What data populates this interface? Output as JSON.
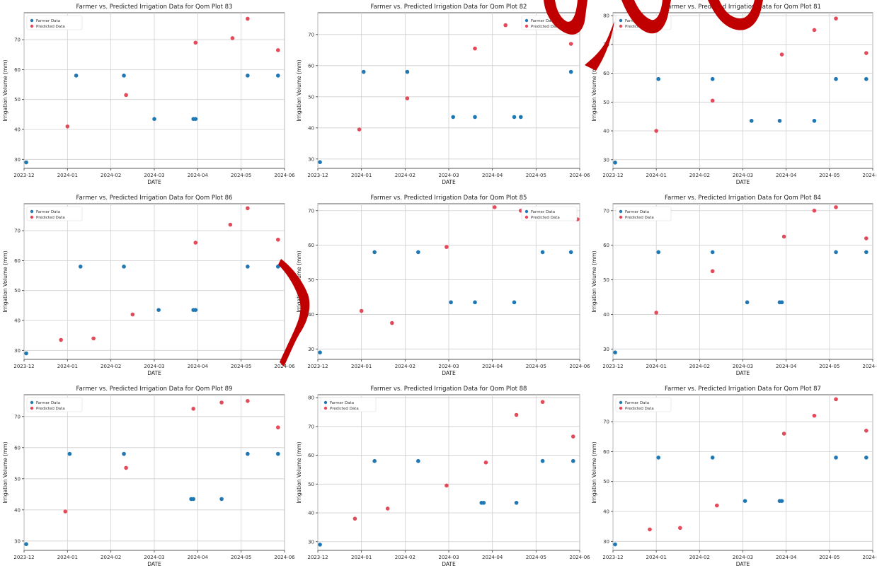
{
  "figure": {
    "colors": {
      "farmer": "#1f77b4",
      "predicted": "#e34a5a",
      "grid": "#cfcfcf",
      "axis": "#333333",
      "decoration": "#c00000"
    }
  },
  "chart_data": [
    {
      "type": "scatter",
      "title": "Farmer vs. Predicted Irrigation Data for Qom Plot 83",
      "xlabel": "DATE",
      "ylabel": "Irrigation Volume (mm)",
      "xticks": [
        "2023-12",
        "2024-01",
        "2024-02",
        "2024-03",
        "2024-04",
        "2024-05",
        "2024-06"
      ],
      "xlim": [
        0,
        6
      ],
      "ylim": [
        27,
        79
      ],
      "yticks": [
        30,
        40,
        50,
        60,
        70
      ],
      "legend": {
        "position": "top-left",
        "entries": [
          "Farmer Data",
          "Predicted Data"
        ]
      },
      "grid": true,
      "series": [
        {
          "name": "Farmer Data",
          "color": "#1f77b4",
          "points": [
            [
              0.05,
              29
            ],
            [
              1.2,
              58
            ],
            [
              2.3,
              58
            ],
            [
              3.0,
              43.5
            ],
            [
              3.9,
              43.5
            ],
            [
              3.95,
              43.5
            ],
            [
              5.15,
              58
            ],
            [
              5.85,
              58
            ]
          ]
        },
        {
          "name": "Predicted Data",
          "color": "#e34a5a",
          "points": [
            [
              1.0,
              41
            ],
            [
              2.35,
              51.5
            ],
            [
              3.95,
              69
            ],
            [
              4.8,
              70.5
            ],
            [
              5.15,
              77
            ],
            [
              5.85,
              66.5
            ]
          ]
        }
      ]
    },
    {
      "type": "scatter",
      "title": "Farmer vs. Predicted Irrigation Data for Qom Plot 82",
      "xlabel": "DATE",
      "ylabel": "Irrigation Volume (mm)",
      "xticks": [
        "2023-12",
        "2024-01",
        "2024-02",
        "2024-03",
        "2024-04",
        "2024-05",
        "2024-06"
      ],
      "xlim": [
        0,
        6
      ],
      "ylim": [
        27,
        77
      ],
      "yticks": [
        30,
        40,
        50,
        60,
        70
      ],
      "legend": {
        "position": "top-right",
        "entries": [
          "Farmer Data",
          "Predicted Data"
        ]
      },
      "grid": true,
      "series": [
        {
          "name": "Farmer Data",
          "color": "#1f77b4",
          "points": [
            [
              0.05,
              29
            ],
            [
              1.05,
              58
            ],
            [
              2.05,
              58
            ],
            [
              3.1,
              43.5
            ],
            [
              3.6,
              43.5
            ],
            [
              4.5,
              43.5
            ],
            [
              4.65,
              43.5
            ],
            [
              5.8,
              58
            ]
          ]
        },
        {
          "name": "Predicted Data",
          "color": "#e34a5a",
          "points": [
            [
              0.95,
              39.5
            ],
            [
              2.05,
              49.5
            ],
            [
              3.6,
              65.5
            ],
            [
              4.3,
              73
            ],
            [
              4.95,
              75
            ],
            [
              5.8,
              67
            ]
          ]
        }
      ]
    },
    {
      "type": "scatter",
      "title": "Farmer vs. Predicted Irrigation Data for Qom Plot 81",
      "xlabel": "DATE",
      "ylabel": "Irrigation Volume (mm)",
      "xticks": [
        "2023-12",
        "2024-01",
        "2024-02",
        "2024-03",
        "2024-04",
        "2024-05",
        "2024-06"
      ],
      "xlim": [
        0,
        6
      ],
      "ylim": [
        27,
        81
      ],
      "yticks": [
        30,
        40,
        50,
        60,
        70,
        80
      ],
      "legend": {
        "position": "top-left",
        "entries": [
          "Farmer Data",
          "Predicted Data"
        ]
      },
      "grid": true,
      "series": [
        {
          "name": "Farmer Data",
          "color": "#1f77b4",
          "points": [
            [
              0.05,
              29
            ],
            [
              1.05,
              58
            ],
            [
              2.3,
              58
            ],
            [
              3.2,
              43.5
            ],
            [
              3.85,
              43.5
            ],
            [
              4.65,
              43.5
            ],
            [
              5.15,
              58
            ],
            [
              5.85,
              58
            ]
          ]
        },
        {
          "name": "Predicted Data",
          "color": "#e34a5a",
          "points": [
            [
              1.0,
              40
            ],
            [
              2.3,
              50.5
            ],
            [
              3.9,
              66.5
            ],
            [
              4.65,
              75
            ],
            [
              5.15,
              79
            ],
            [
              5.85,
              67
            ]
          ]
        }
      ]
    },
    {
      "type": "scatter",
      "title": "Farmer vs. Predicted Irrigation Data for Qom Plot 86",
      "xlabel": "DATE",
      "ylabel": "Irrigation Volume (mm)",
      "xticks": [
        "2023-12",
        "2024-01",
        "2024-02",
        "2024-03",
        "2024-04",
        "2024-05",
        "2024-06"
      ],
      "xlim": [
        0,
        6
      ],
      "ylim": [
        27,
        79
      ],
      "yticks": [
        30,
        40,
        50,
        60,
        70
      ],
      "legend": {
        "position": "top-left",
        "entries": [
          "Farmer Data",
          "Predicted Data"
        ]
      },
      "grid": true,
      "series": [
        {
          "name": "Farmer Data",
          "color": "#1f77b4",
          "points": [
            [
              0.05,
              29
            ],
            [
              1.3,
              58
            ],
            [
              2.3,
              58
            ],
            [
              3.1,
              43.5
            ],
            [
              3.9,
              43.5
            ],
            [
              3.95,
              43.5
            ],
            [
              5.15,
              58
            ],
            [
              5.85,
              58
            ]
          ]
        },
        {
          "name": "Predicted Data",
          "color": "#e34a5a",
          "points": [
            [
              0.85,
              33.5
            ],
            [
              1.6,
              34
            ],
            [
              2.5,
              42
            ],
            [
              3.95,
              66
            ],
            [
              4.75,
              72
            ],
            [
              5.15,
              77.5
            ],
            [
              5.85,
              67
            ]
          ]
        }
      ]
    },
    {
      "type": "scatter",
      "title": "Farmer vs. Predicted Irrigation Data for Qom Plot 85",
      "xlabel": "DATE",
      "ylabel": "Irrigation Volume (mm)",
      "xticks": [
        "2023-12",
        "2024-01",
        "2024-02",
        "2024-03",
        "2024-04",
        "2024-05",
        "2024-06"
      ],
      "xlim": [
        0,
        6
      ],
      "ylim": [
        27,
        72
      ],
      "yticks": [
        30,
        40,
        50,
        60,
        70
      ],
      "legend": {
        "position": "top-right",
        "entries": [
          "Farmer Data",
          "Predicted Data"
        ]
      },
      "grid": true,
      "series": [
        {
          "name": "Farmer Data",
          "color": "#1f77b4",
          "points": [
            [
              0.05,
              29
            ],
            [
              1.3,
              58
            ],
            [
              2.3,
              58
            ],
            [
              3.05,
              43.5
            ],
            [
              3.6,
              43.5
            ],
            [
              4.5,
              43.5
            ],
            [
              5.15,
              58
            ],
            [
              5.8,
              58
            ]
          ]
        },
        {
          "name": "Predicted Data",
          "color": "#e34a5a",
          "points": [
            [
              1.0,
              41
            ],
            [
              1.7,
              37.5
            ],
            [
              2.95,
              59.5
            ],
            [
              4.05,
              71
            ],
            [
              4.65,
              70
            ],
            [
              5.2,
              68
            ],
            [
              5.95,
              67.5
            ]
          ]
        }
      ]
    },
    {
      "type": "scatter",
      "title": "Farmer vs. Predicted Irrigation Data for Qom Plot 84",
      "xlabel": "DATE",
      "ylabel": "Irrigation Volume (mm)",
      "xticks": [
        "2023-12",
        "2024-01",
        "2024-02",
        "2024-03",
        "2024-04",
        "2024-05",
        "2024-06"
      ],
      "xlim": [
        0,
        6
      ],
      "ylim": [
        27,
        72
      ],
      "yticks": [
        30,
        40,
        50,
        60,
        70
      ],
      "legend": {
        "position": "top-left",
        "entries": [
          "Farmer Data",
          "Predicted Data"
        ]
      },
      "grid": true,
      "series": [
        {
          "name": "Farmer Data",
          "color": "#1f77b4",
          "points": [
            [
              0.05,
              29
            ],
            [
              1.05,
              58
            ],
            [
              2.3,
              58
            ],
            [
              3.1,
              43.5
            ],
            [
              3.85,
              43.5
            ],
            [
              3.9,
              43.5
            ],
            [
              5.15,
              58
            ],
            [
              5.85,
              58
            ]
          ]
        },
        {
          "name": "Predicted Data",
          "color": "#e34a5a",
          "points": [
            [
              1.0,
              40.5
            ],
            [
              2.3,
              52.5
            ],
            [
              3.95,
              62.5
            ],
            [
              4.65,
              70
            ],
            [
              5.15,
              71
            ],
            [
              5.85,
              62
            ]
          ]
        }
      ]
    },
    {
      "type": "scatter",
      "title": "Farmer vs. Predicted Irrigation Data for Qom Plot 89",
      "xlabel": "DATE",
      "ylabel": "Irrigation Volume (mm)",
      "xticks": [
        "2023-12",
        "2024-01",
        "2024-02",
        "2024-03",
        "2024-04",
        "2024-05",
        "2024-06"
      ],
      "xlim": [
        0,
        6
      ],
      "ylim": [
        27,
        77
      ],
      "yticks": [
        30,
        40,
        50,
        60,
        70
      ],
      "legend": {
        "position": "top-left",
        "entries": [
          "Farmer Data",
          "Predicted Data"
        ]
      },
      "grid": true,
      "series": [
        {
          "name": "Farmer Data",
          "color": "#1f77b4",
          "points": [
            [
              0.05,
              29
            ],
            [
              1.05,
              58
            ],
            [
              2.3,
              58
            ],
            [
              3.85,
              43.5
            ],
            [
              3.9,
              43.5
            ],
            [
              4.55,
              43.5
            ],
            [
              5.15,
              58
            ],
            [
              5.85,
              58
            ]
          ]
        },
        {
          "name": "Predicted Data",
          "color": "#e34a5a",
          "points": [
            [
              0.95,
              39.5
            ],
            [
              2.35,
              53.5
            ],
            [
              3.9,
              72.5
            ],
            [
              4.55,
              74.5
            ],
            [
              5.15,
              75
            ],
            [
              5.85,
              66.5
            ]
          ]
        }
      ]
    },
    {
      "type": "scatter",
      "title": "Farmer vs. Predicted Irrigation Data for Qom Plot 88",
      "xlabel": "DATE",
      "ylabel": "Irrigation Volume (mm)",
      "xticks": [
        "2023-12",
        "2024-01",
        "2024-02",
        "2024-03",
        "2024-04",
        "2024-05",
        "2024-06"
      ],
      "xlim": [
        0,
        6
      ],
      "ylim": [
        27,
        81
      ],
      "yticks": [
        30,
        40,
        50,
        60,
        70,
        80
      ],
      "legend": {
        "position": "top-left",
        "entries": [
          "Farmer Data",
          "Predicted Data"
        ]
      },
      "grid": true,
      "series": [
        {
          "name": "Farmer Data",
          "color": "#1f77b4",
          "points": [
            [
              0.05,
              29
            ],
            [
              1.3,
              58
            ],
            [
              2.3,
              58
            ],
            [
              3.75,
              43.5
            ],
            [
              3.8,
              43.5
            ],
            [
              4.55,
              43.5
            ],
            [
              5.15,
              58
            ],
            [
              5.85,
              58
            ]
          ]
        },
        {
          "name": "Predicted Data",
          "color": "#e34a5a",
          "points": [
            [
              0.85,
              38
            ],
            [
              1.6,
              41.5
            ],
            [
              2.95,
              49.5
            ],
            [
              3.85,
              57.5
            ],
            [
              4.55,
              74
            ],
            [
              5.15,
              78.5
            ],
            [
              5.85,
              66.5
            ]
          ]
        }
      ]
    },
    {
      "type": "scatter",
      "title": "Farmer vs. Predicted Irrigation Data for Qom Plot 87",
      "xlabel": "DATE",
      "ylabel": "Irrigation Volume (mm)",
      "xticks": [
        "2023-12",
        "2024-01",
        "2024-02",
        "2024-03",
        "2024-04",
        "2024-05",
        "2024-06"
      ],
      "xlim": [
        0,
        6
      ],
      "ylim": [
        27,
        79
      ],
      "yticks": [
        30,
        40,
        50,
        60,
        70
      ],
      "legend": {
        "position": "top-left",
        "entries": [
          "Farmer Data",
          "Predicted Data"
        ]
      },
      "grid": true,
      "series": [
        {
          "name": "Farmer Data",
          "color": "#1f77b4",
          "points": [
            [
              0.05,
              29
            ],
            [
              1.05,
              58
            ],
            [
              2.3,
              58
            ],
            [
              3.05,
              43.5
            ],
            [
              3.85,
              43.5
            ],
            [
              3.9,
              43.5
            ],
            [
              5.15,
              58
            ],
            [
              5.85,
              58
            ]
          ]
        },
        {
          "name": "Predicted Data",
          "color": "#e34a5a",
          "points": [
            [
              0.85,
              34
            ],
            [
              1.55,
              34.5
            ],
            [
              2.4,
              42
            ],
            [
              3.95,
              66
            ],
            [
              4.65,
              72
            ],
            [
              5.15,
              77.5
            ],
            [
              5.85,
              67
            ]
          ]
        }
      ]
    }
  ]
}
